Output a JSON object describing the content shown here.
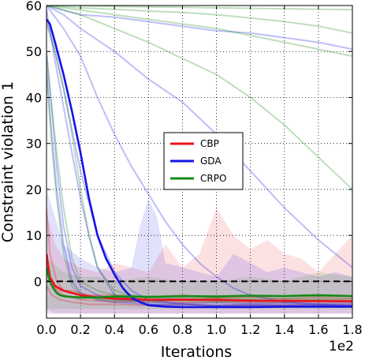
{
  "chart_data": {
    "type": "line",
    "title": "",
    "xlabel": "Iterations",
    "ylabel": "Constraint violation 1",
    "x_offset_text": "1e2",
    "xlim": [
      0.0,
      1.8
    ],
    "ylim": [
      -8,
      60
    ],
    "xticks": [
      0.0,
      0.2,
      0.4,
      0.6,
      0.8,
      1.0,
      1.2,
      1.4,
      1.6,
      1.8
    ],
    "xtick_labels": [
      "0.0",
      "0.2",
      "0.4",
      "0.6",
      "0.8",
      "1.0",
      "1.2",
      "1.4",
      "1.6",
      "1.8"
    ],
    "yticks": [
      0,
      10,
      20,
      30,
      40,
      50,
      60
    ],
    "ytick_labels": [
      "0",
      "10",
      "20",
      "30",
      "40",
      "50",
      "60"
    ],
    "grid": true,
    "legend_position": "center",
    "reference_line": {
      "y": 0,
      "style": "dashed",
      "color": "#000000"
    },
    "series": [
      {
        "name": "CBP",
        "color": "#e8141c",
        "mean": {
          "x": [
            0.0,
            0.02,
            0.05,
            0.1,
            0.15,
            0.2,
            0.3,
            0.4,
            0.6,
            0.8,
            1.0,
            1.2,
            1.4,
            1.6,
            1.8
          ],
          "y": [
            6,
            1,
            -1,
            -2,
            -2.5,
            -3,
            -3.5,
            -3.8,
            -4,
            -4,
            -4,
            -4.2,
            -4.2,
            -4.3,
            -4.3
          ]
        },
        "band": {
          "x": [
            0.0,
            0.05,
            0.1,
            0.2,
            0.3,
            0.4,
            0.5,
            0.6,
            0.7,
            0.8,
            0.9,
            1.0,
            1.1,
            1.2,
            1.3,
            1.4,
            1.5,
            1.6,
            1.7,
            1.8
          ],
          "upper": [
            15,
            8,
            5,
            3,
            2,
            4,
            3,
            2,
            8,
            3,
            6,
            16,
            10,
            7,
            9,
            6,
            5,
            2,
            6,
            10
          ],
          "lower": [
            -6,
            -7,
            -7,
            -7,
            -7,
            -7,
            -7,
            -7,
            -7,
            -7,
            -7,
            -7,
            -7,
            -7,
            -7,
            -7,
            -7,
            -7,
            -7,
            -7
          ]
        },
        "runs": [
          {
            "x": [
              0.0,
              0.02,
              0.06,
              0.1,
              0.2,
              0.4,
              0.6,
              0.8,
              1.0,
              1.2,
              1.4,
              1.6,
              1.8
            ],
            "y": [
              16,
              6,
              0,
              -2,
              -3,
              -3.5,
              -4,
              -3.8,
              -4.2,
              -4,
              -4.3,
              -4,
              -4.2
            ]
          },
          {
            "x": [
              0.0,
              0.02,
              0.06,
              0.1,
              0.2,
              0.4,
              0.6,
              0.8,
              1.0,
              1.2,
              1.4,
              1.6,
              1.8
            ],
            "y": [
              4,
              0,
              -2,
              -3,
              -4,
              -4.5,
              -4.3,
              -4.6,
              -4.4,
              -4.5,
              -4.6,
              -4.4,
              -4.6
            ]
          },
          {
            "x": [
              0.0,
              0.03,
              0.08,
              0.15,
              0.25,
              0.4,
              0.6,
              0.8,
              1.0,
              1.2,
              1.4,
              1.6,
              1.8
            ],
            "y": [
              2,
              -1,
              -2,
              -2,
              -3,
              -3,
              -3.5,
              -3,
              -3.6,
              -3.4,
              -3.8,
              -3.5,
              -3.7
            ]
          },
          {
            "x": [
              0.0,
              0.03,
              0.08,
              0.15,
              0.25,
              0.4,
              0.6,
              0.8,
              1.0,
              1.2,
              1.4,
              1.6,
              1.8
            ],
            "y": [
              -1,
              -3,
              -4,
              -4.5,
              -5,
              -5,
              -5.2,
              -5,
              -5.3,
              -5.1,
              -5.2,
              -5,
              -5.2
            ]
          }
        ]
      },
      {
        "name": "GDA",
        "color": "#1414e6",
        "mean": {
          "x": [
            0.0,
            0.02,
            0.05,
            0.1,
            0.15,
            0.2,
            0.25,
            0.3,
            0.35,
            0.4,
            0.45,
            0.5,
            0.55,
            0.6,
            0.7,
            0.8,
            1.0,
            1.2,
            1.4,
            1.6,
            1.8
          ],
          "y": [
            57,
            56,
            52,
            45,
            37,
            28,
            18,
            10,
            5,
            1.5,
            -1.5,
            -3.5,
            -4.5,
            -5.2,
            -5.5,
            -5.6,
            -5.6,
            -5.6,
            -5.5,
            -5.5,
            -5.5
          ]
        },
        "band": {
          "x": [
            0.0,
            0.1,
            0.2,
            0.3,
            0.4,
            0.5,
            0.55,
            0.6,
            0.65,
            0.7,
            0.8,
            0.9,
            1.0,
            1.1,
            1.2,
            1.3,
            1.4,
            1.5,
            1.6,
            1.7,
            1.8
          ],
          "upper": [
            20,
            8,
            5,
            3,
            2,
            3,
            12,
            18,
            14,
            4,
            3,
            2,
            1,
            6,
            4,
            2,
            3,
            2,
            1,
            2,
            1
          ],
          "lower": [
            -7,
            -7,
            -7,
            -7,
            -7,
            -7,
            -7,
            -7,
            -7,
            -7,
            -7,
            -7,
            -7,
            -7,
            -7,
            -7,
            -7,
            -7,
            -7,
            -7,
            -7
          ]
        },
        "runs": [
          {
            "x": [
              0.0,
              0.1,
              0.2,
              0.4,
              0.6,
              0.8,
              1.0,
              1.2,
              1.4,
              1.6,
              1.8
            ],
            "y": [
              60,
              59,
              58,
              57.5,
              56.5,
              55.5,
              54.5,
              54,
              53,
              52,
              50.5
            ]
          },
          {
            "x": [
              0.0,
              0.1,
              0.2,
              0.4,
              0.6,
              0.8,
              1.0,
              1.2,
              1.4,
              1.6,
              1.8
            ],
            "y": [
              60,
              58,
              55,
              50,
              44,
              39,
              32,
              24,
              16,
              9,
              3
            ]
          },
          {
            "x": [
              0.0,
              0.1,
              0.2,
              0.3,
              0.4,
              0.5,
              0.6,
              0.7,
              0.8,
              0.9,
              1.0,
              1.1,
              1.2,
              1.4,
              1.6,
              1.8
            ],
            "y": [
              60,
              55,
              49,
              40,
              32,
              25,
              19,
              13,
              8,
              4,
              1,
              -1.5,
              -3,
              -4.5,
              -5,
              -5.5
            ]
          },
          {
            "x": [
              0.0,
              0.05,
              0.1,
              0.15,
              0.2,
              0.25,
              0.3,
              0.4,
              0.6,
              0.8,
              1.0,
              1.2,
              1.4,
              1.6,
              1.8
            ],
            "y": [
              59,
              48,
              38,
              28,
              18,
              10,
              3,
              -3,
              -5,
              -5.5,
              -5.5,
              -5.4,
              -5.5,
              -5.4,
              -5.5
            ]
          },
          {
            "x": [
              0.0,
              0.03,
              0.06,
              0.1,
              0.15,
              0.2,
              0.3,
              0.4,
              0.6,
              0.8,
              1.0,
              1.2,
              1.4,
              1.6,
              1.8
            ],
            "y": [
              50,
              38,
              25,
              12,
              3,
              -1,
              -3,
              -4,
              -4.5,
              -4.8,
              -4.6,
              -4.8,
              -4.7,
              -4.9,
              -4.8
            ]
          },
          {
            "x": [
              0.0,
              0.03,
              0.06,
              0.1,
              0.15,
              0.2,
              0.3,
              0.4,
              0.6,
              0.8,
              1.0,
              1.2,
              1.4,
              1.6,
              1.8
            ],
            "y": [
              46,
              32,
              20,
              8,
              0,
              -2.5,
              -4,
              -4.5,
              -5,
              -5,
              -5.2,
              -5,
              -5.1,
              -5,
              -5.1
            ]
          },
          {
            "x": [
              0.0,
              0.05,
              0.1,
              0.15,
              0.2,
              0.3,
              0.4,
              0.5,
              0.6,
              0.8,
              1.0,
              1.2,
              1.4,
              1.6,
              1.8
            ],
            "y": [
              57,
              50,
              42,
              33,
              24,
              10,
              2,
              -2,
              -4,
              -5,
              -5.3,
              -5.2,
              -5.3,
              -5.2,
              -5.3
            ]
          }
        ]
      },
      {
        "name": "CRPO",
        "color": "#168a16",
        "mean": {
          "x": [
            0.0,
            0.02,
            0.04,
            0.06,
            0.08,
            0.1,
            0.12,
            0.15,
            0.2,
            0.3,
            0.4,
            0.6,
            0.8,
            1.0,
            1.2,
            1.4,
            1.6,
            1.8
          ],
          "y": [
            3,
            0,
            -1.5,
            -2.5,
            -3,
            -3.2,
            -3.3,
            -3.4,
            -3.5,
            -3.5,
            -3.3,
            -3.4,
            -3.2,
            -3.3,
            -3.1,
            -3.2,
            -3.0,
            -3.2
          ]
        },
        "band": {
          "x": [
            0.0,
            0.1,
            0.2,
            0.3,
            0.4,
            0.6,
            0.8,
            1.0,
            1.2,
            1.4,
            1.6,
            1.8
          ],
          "upper": [
            5,
            2,
            1,
            1,
            0,
            1,
            0,
            0,
            1,
            0,
            2,
            1
          ],
          "lower": [
            -6,
            -6,
            -6,
            -6,
            -6,
            -6,
            -6,
            -6,
            -6,
            -6,
            -6,
            -6
          ]
        },
        "runs": [
          {
            "x": [
              0.0,
              0.2,
              0.4,
              0.6,
              0.8,
              1.0,
              1.2,
              1.4,
              1.6,
              1.8
            ],
            "y": [
              60,
              60,
              59.8,
              59.7,
              59.6,
              59.5,
              59.4,
              59.3,
              59.2,
              59.1
            ]
          },
          {
            "x": [
              0.0,
              0.2,
              0.4,
              0.6,
              0.8,
              1.0,
              1.2,
              1.4,
              1.6,
              1.8
            ],
            "y": [
              60,
              59.5,
              59.2,
              58.8,
              58.5,
              58,
              57.3,
              56.5,
              55.5,
              54
            ]
          },
          {
            "x": [
              0.0,
              0.2,
              0.4,
              0.6,
              0.8,
              1.0,
              1.2,
              1.4,
              1.6,
              1.8
            ],
            "y": [
              60,
              59,
              58,
              57,
              56,
              55,
              53.5,
              52,
              50.5,
              49
            ]
          },
          {
            "x": [
              0.0,
              0.2,
              0.4,
              0.6,
              0.8,
              1.0,
              1.2,
              1.4,
              1.6,
              1.8
            ],
            "y": [
              60,
              58,
              55,
              52,
              48.5,
              45,
              40,
              34,
              27,
              20
            ]
          },
          {
            "x": [
              0.0,
              0.05,
              0.1,
              0.15,
              0.2,
              0.25,
              0.3,
              0.4,
              0.5,
              0.6,
              0.8,
              1.0,
              1.2,
              1.4,
              1.6,
              1.8
            ],
            "y": [
              56,
              50,
              42,
              32,
              20,
              10,
              3,
              -2,
              -3,
              -3.5,
              -3.8,
              -3.6,
              -3.8,
              -3.7,
              -3.9,
              -3.8
            ]
          },
          {
            "x": [
              0.0,
              0.03,
              0.06,
              0.1,
              0.15,
              0.2,
              0.3,
              0.4,
              0.6,
              0.8,
              1.0,
              1.2,
              1.4,
              1.6,
              1.8
            ],
            "y": [
              49,
              38,
              28,
              16,
              5,
              0,
              -2,
              -3,
              -3.2,
              -3.4,
              -3.2,
              -3.3,
              -3.2,
              -3.3,
              -3.2
            ]
          },
          {
            "x": [
              0.0,
              0.03,
              0.06,
              0.1,
              0.15,
              0.2,
              0.3,
              0.4,
              0.6,
              0.8,
              1.0,
              1.2,
              1.4,
              1.6,
              1.8
            ],
            "y": [
              45,
              30,
              18,
              6,
              -1,
              -3,
              -4,
              -4.2,
              -4.3,
              -4.2,
              -4.4,
              -4.3,
              -4.4,
              -4.3,
              -4.4
            ]
          }
        ]
      }
    ]
  }
}
